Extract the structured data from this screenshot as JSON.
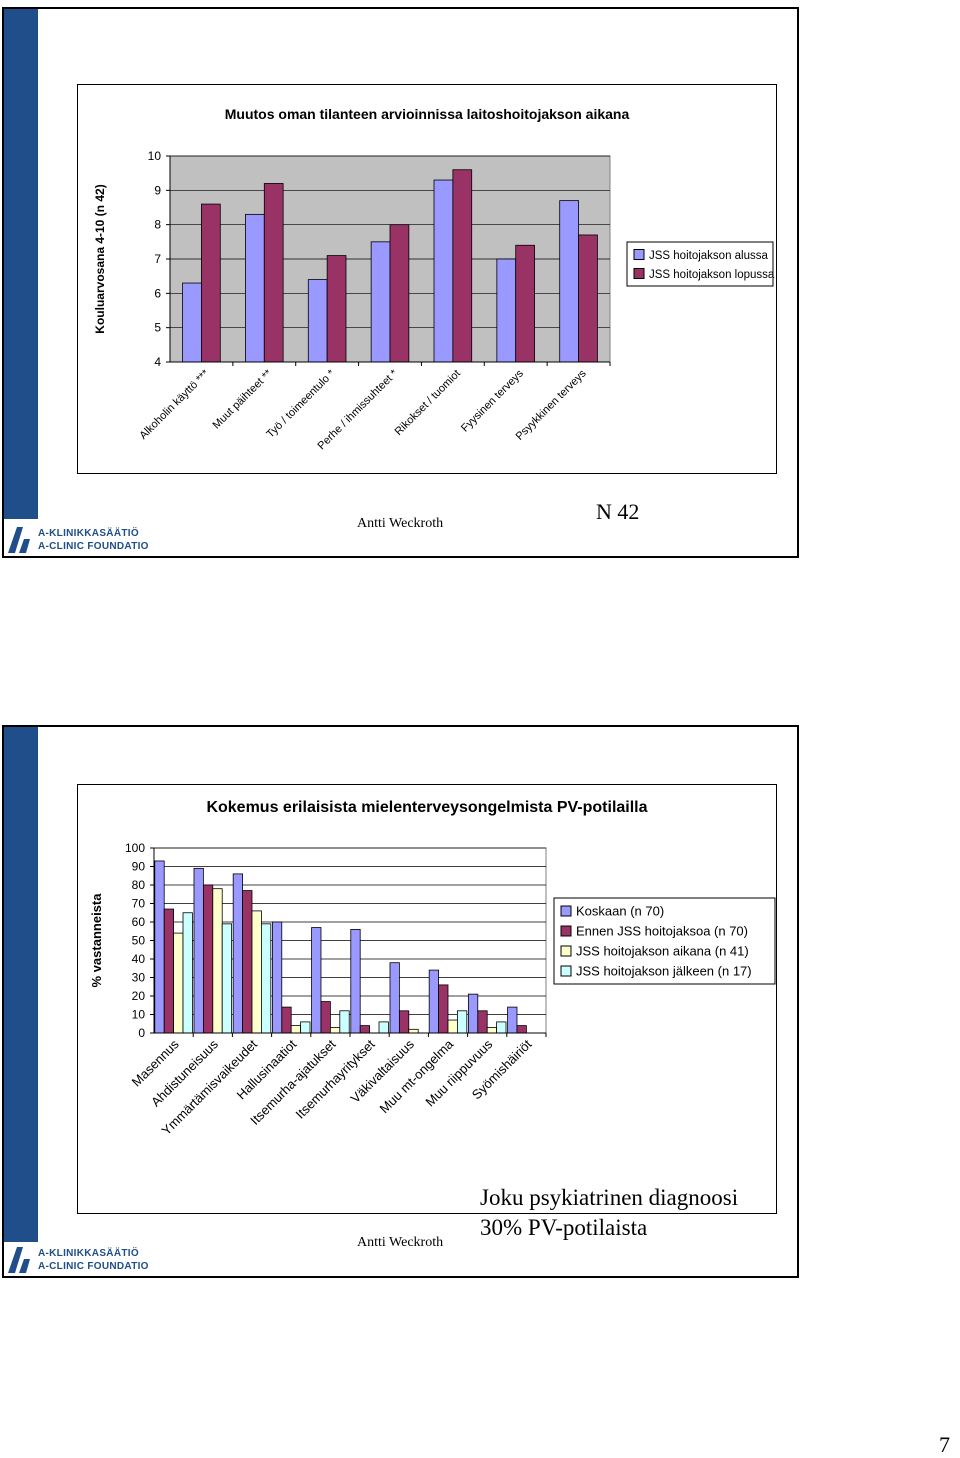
{
  "slide1": {
    "author": "Antti Weckroth",
    "n_label": "N 42",
    "logo": {
      "line1": "A-KLINIKKASÄÄTIÖ",
      "line2": "A-CLINIC FOUNDATION"
    }
  },
  "slide2": {
    "author": "Antti Weckroth",
    "note_line1": "Joku psykiatrinen diagnoosi",
    "note_line2": "30% PV-potilaista",
    "logo": {
      "line1": "A-KLINIKKASÄÄTIÖ",
      "line2": "A-CLINIC FOUNDATION"
    }
  },
  "page_number": "7",
  "chart_data": [
    {
      "type": "bar",
      "title": "Muutos oman tilanteen arvioinnissa laitoshoitojakson aikana",
      "ylabel": "Kouluarvosana 4-10 (n 42)",
      "xlabel": "",
      "ylim": [
        4,
        10
      ],
      "yticks": [
        "4",
        "5",
        "6",
        "7",
        "8",
        "9",
        "10"
      ],
      "grid": true,
      "legend_position": "right",
      "categories": [
        "Alkoholin käyttö ***",
        "Muut päihteet **",
        "Työ / toimeentulo *",
        "Perhe / ihmissuhteet *",
        "Rikokset / tuomiot",
        "Fyysinen terveys",
        "Psyykkinen terveys"
      ],
      "series": [
        {
          "name": "JSS hoitojakson alussa",
          "color": "#9999ff",
          "values": [
            6.3,
            8.3,
            6.4,
            7.5,
            9.3,
            7.0,
            8.7
          ]
        },
        {
          "name": "JSS hoitojakson lopussa",
          "color": "#993366",
          "values": [
            8.6,
            9.2,
            7.1,
            8.0,
            9.6,
            7.4,
            7.7
          ]
        }
      ]
    },
    {
      "type": "bar",
      "title": "Kokemus erilaisista mielenterveysongelmista PV-potilailla",
      "ylabel": "% vastanneista",
      "xlabel": "",
      "ylim": [
        0,
        100
      ],
      "yticks": [
        "0",
        "10",
        "20",
        "30",
        "40",
        "50",
        "60",
        "70",
        "80",
        "90",
        "100"
      ],
      "grid": true,
      "legend_position": "right",
      "categories": [
        "Masennus",
        "Ahdistuneisuus",
        "Ymmärtämisvaikeudet",
        "Hallusinaatiot",
        "Itsemurha-ajatukset",
        "Itsemurhayritykset",
        "Väkivaltaisuus",
        "Muu mt-ongelma",
        "Muu riippuvuus",
        "Syömishäiriöt"
      ],
      "series": [
        {
          "name": "Koskaan (n 70)",
          "color": "#9999ff",
          "values": [
            93,
            89,
            86,
            60,
            57,
            56,
            38,
            34,
            21,
            14
          ]
        },
        {
          "name": "Ennen JSS hoitojaksoa (n 70)",
          "color": "#993366",
          "values": [
            67,
            80,
            77,
            14,
            17,
            4,
            12,
            26,
            12,
            4
          ]
        },
        {
          "name": "JSS hoitojakson aikana (n 41)",
          "color": "#ffffcc",
          "values": [
            54,
            78,
            66,
            4,
            3,
            0,
            2,
            7,
            3,
            0
          ]
        },
        {
          "name": "JSS hoitojakson jälkeen (n 17)",
          "color": "#ccffff",
          "values": [
            65,
            59,
            59,
            6,
            12,
            6,
            0,
            12,
            6,
            0
          ]
        }
      ]
    }
  ]
}
